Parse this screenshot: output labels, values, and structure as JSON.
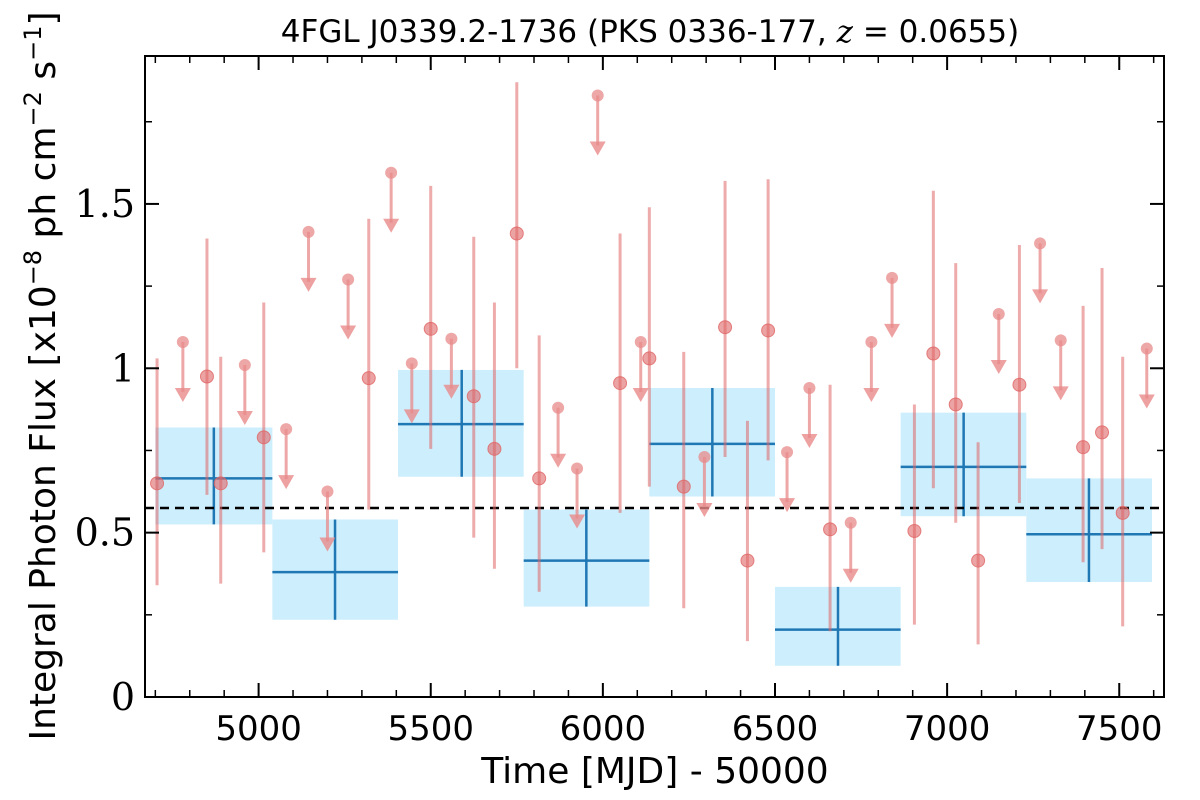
{
  "chart_data": {
    "type": "scatter",
    "title": {
      "prefix": "4FGL J0339.2-1736 (PKS 0336-177, ",
      "z_symbol": "z",
      "z_value": " = 0.0655",
      "suffix": ")"
    },
    "xlabel": "Time [MJD] - 50000",
    "ylabel": {
      "prefix": "Integral Photon Flux [x10",
      "exp1": "−8",
      "middle": " ph cm",
      "exp2": "−2",
      "middle2": " s",
      "exp3": "−1",
      "suffix": "]"
    },
    "xlim": [
      4670,
      7630
    ],
    "ylim": [
      0,
      1.95
    ],
    "x_ticks": [
      5000,
      5500,
      6000,
      6500,
      7000,
      7500
    ],
    "x_tick_labels": [
      "5000",
      "5500",
      "6000",
      "6500",
      "7000",
      "7500"
    ],
    "y_ticks": [
      0,
      0.5,
      1,
      1.5
    ],
    "y_tick_labels": [
      "0",
      "0.5",
      "1",
      "1.5"
    ],
    "grid": false,
    "mean_flux": 0.575,
    "colors": {
      "points": "#e06666",
      "upper_limits": "#e88a8a",
      "bins_fill": "#cdeefc",
      "bins_line": "#1f77b4",
      "mean_line": "#000000"
    },
    "binned": [
      {
        "x0": 4700,
        "x1": 5040,
        "xc": 4870,
        "y": 0.665,
        "ylo": 0.525,
        "yhi": 0.82
      },
      {
        "x0": 5040,
        "x1": 5405,
        "xc": 5222,
        "y": 0.38,
        "ylo": 0.235,
        "yhi": 0.54
      },
      {
        "x0": 5405,
        "x1": 5770,
        "xc": 5590,
        "y": 0.83,
        "ylo": 0.67,
        "yhi": 0.995
      },
      {
        "x0": 5770,
        "x1": 6135,
        "xc": 5952,
        "y": 0.415,
        "ylo": 0.275,
        "yhi": 0.57
      },
      {
        "x0": 6135,
        "x1": 6500,
        "xc": 6318,
        "y": 0.77,
        "ylo": 0.61,
        "yhi": 0.94
      },
      {
        "x0": 6500,
        "x1": 6865,
        "xc": 6683,
        "y": 0.205,
        "ylo": 0.095,
        "yhi": 0.335
      },
      {
        "x0": 6865,
        "x1": 7230,
        "xc": 7048,
        "y": 0.7,
        "ylo": 0.55,
        "yhi": 0.865
      },
      {
        "x0": 7230,
        "x1": 7595,
        "xc": 7412,
        "y": 0.495,
        "ylo": 0.35,
        "yhi": 0.665
      }
    ],
    "points": [
      {
        "x": 4705,
        "y": 0.65,
        "ylo": 0.34,
        "yhi": 1.03
      },
      {
        "x": 4850,
        "y": 0.975,
        "ylo": 0.615,
        "yhi": 1.395
      },
      {
        "x": 4890,
        "y": 0.65,
        "ylo": 0.345,
        "yhi": 1.035
      },
      {
        "x": 5015,
        "y": 0.79,
        "ylo": 0.44,
        "yhi": 1.2
      },
      {
        "x": 5320,
        "y": 0.97,
        "ylo": 0.57,
        "yhi": 1.455
      },
      {
        "x": 5500,
        "y": 1.12,
        "ylo": 0.755,
        "yhi": 1.555
      },
      {
        "x": 5625,
        "y": 0.915,
        "ylo": 0.485,
        "yhi": 1.4
      },
      {
        "x": 5685,
        "y": 0.755,
        "ylo": 0.39,
        "yhi": 1.2
      },
      {
        "x": 5750,
        "y": 1.41,
        "ylo": 1.0,
        "yhi": 1.87
      },
      {
        "x": 5815,
        "y": 0.665,
        "ylo": 0.32,
        "yhi": 1.1
      },
      {
        "x": 6050,
        "y": 0.955,
        "ylo": 0.56,
        "yhi": 1.41
      },
      {
        "x": 6135,
        "y": 1.03,
        "ylo": 0.64,
        "yhi": 1.49
      },
      {
        "x": 6235,
        "y": 0.64,
        "ylo": 0.27,
        "yhi": 1.05
      },
      {
        "x": 6355,
        "y": 1.125,
        "ylo": 0.73,
        "yhi": 1.57
      },
      {
        "x": 6420,
        "y": 0.415,
        "ylo": 0.17,
        "yhi": 0.84
      },
      {
        "x": 6480,
        "y": 1.115,
        "ylo": 0.72,
        "yhi": 1.575
      },
      {
        "x": 6660,
        "y": 0.51,
        "ylo": 0.2,
        "yhi": 0.95
      },
      {
        "x": 6905,
        "y": 0.505,
        "ylo": 0.22,
        "yhi": 0.89
      },
      {
        "x": 6960,
        "y": 1.045,
        "ylo": 0.635,
        "yhi": 1.54
      },
      {
        "x": 7025,
        "y": 0.89,
        "ylo": 0.53,
        "yhi": 1.32
      },
      {
        "x": 7090,
        "y": 0.415,
        "ylo": 0.16,
        "yhi": 0.775
      },
      {
        "x": 7210,
        "y": 0.95,
        "ylo": 0.59,
        "yhi": 1.375
      },
      {
        "x": 7395,
        "y": 0.76,
        "ylo": 0.41,
        "yhi": 1.19
      },
      {
        "x": 7450,
        "y": 0.805,
        "ylo": 0.45,
        "yhi": 1.305
      },
      {
        "x": 7510,
        "y": 0.56,
        "ylo": 0.215,
        "yhi": 1.035
      }
    ],
    "upper_limits": [
      {
        "x": 4780,
        "y": 1.08
      },
      {
        "x": 4960,
        "y": 1.01
      },
      {
        "x": 5080,
        "y": 0.815
      },
      {
        "x": 5145,
        "y": 1.415
      },
      {
        "x": 5200,
        "y": 0.625
      },
      {
        "x": 5260,
        "y": 1.27
      },
      {
        "x": 5385,
        "y": 1.595
      },
      {
        "x": 5445,
        "y": 1.015
      },
      {
        "x": 5560,
        "y": 1.09
      },
      {
        "x": 5870,
        "y": 0.88
      },
      {
        "x": 5925,
        "y": 0.695
      },
      {
        "x": 5985,
        "y": 1.83
      },
      {
        "x": 6110,
        "y": 1.08
      },
      {
        "x": 6295,
        "y": 0.73
      },
      {
        "x": 6535,
        "y": 0.745
      },
      {
        "x": 6600,
        "y": 0.94
      },
      {
        "x": 6720,
        "y": 0.53
      },
      {
        "x": 6780,
        "y": 1.08
      },
      {
        "x": 6840,
        "y": 1.275
      },
      {
        "x": 7150,
        "y": 1.165
      },
      {
        "x": 7270,
        "y": 1.38
      },
      {
        "x": 7330,
        "y": 1.085
      },
      {
        "x": 7580,
        "y": 1.06
      }
    ]
  }
}
